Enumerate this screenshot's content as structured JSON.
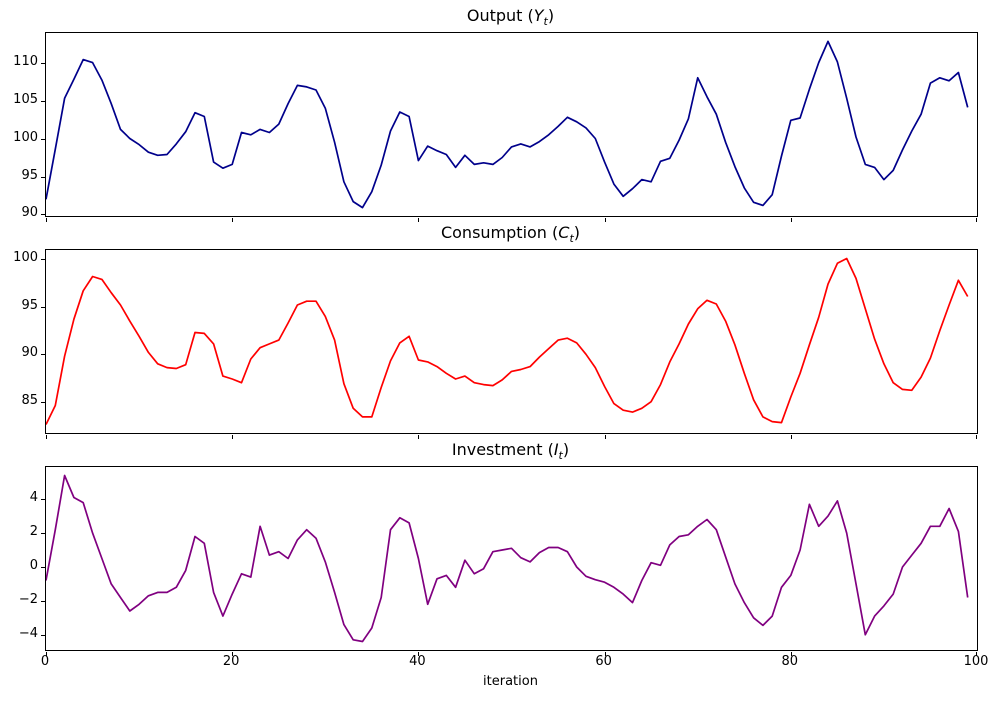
{
  "figure": {
    "xlabel": "iteration"
  },
  "chart_data": [
    {
      "type": "line",
      "title_prefix": "Output (",
      "title_symbol": "Y",
      "title_sub": "t",
      "title_suffix": ")",
      "color": "#00008b",
      "x_start": 0,
      "x_step": 1,
      "xlim": [
        0,
        100
      ],
      "ylim": [
        89.8,
        113.9
      ],
      "xticks": [
        0,
        20,
        40,
        60,
        80,
        100
      ],
      "yticks": [
        90,
        95,
        100,
        105,
        110
      ],
      "show_x_tick_labels": false,
      "grid": false,
      "legend": "none",
      "values": [
        92.0,
        98.6,
        105.3,
        107.8,
        110.4,
        110.0,
        107.7,
        104.6,
        101.2,
        100.0,
        99.2,
        98.2,
        97.8,
        97.9,
        99.3,
        100.9,
        103.4,
        102.9,
        96.9,
        96.1,
        96.6,
        100.8,
        100.5,
        101.2,
        100.8,
        101.9,
        104.6,
        107.0,
        106.8,
        106.4,
        104.0,
        99.5,
        94.3,
        91.7,
        90.9,
        93.0,
        96.5,
        101.0,
        103.5,
        102.9,
        97.1,
        99.0,
        98.4,
        97.9,
        96.2,
        97.8,
        96.6,
        96.8,
        96.6,
        97.5,
        98.9,
        99.3,
        98.9,
        99.6,
        100.5,
        101.6,
        102.8,
        102.2,
        101.4,
        100.0,
        96.9,
        94.0,
        92.4,
        93.4,
        94.6,
        94.3,
        97.0,
        97.4,
        99.8,
        102.6,
        108.0,
        105.5,
        103.2,
        99.5,
        96.3,
        93.5,
        91.6,
        91.2,
        92.6,
        97.7,
        102.4,
        102.7,
        106.5,
        110.0,
        112.8,
        110.1,
        105.3,
        100.2,
        96.6,
        96.2,
        94.6,
        95.8,
        98.5,
        101.0,
        103.2,
        107.3,
        108.0,
        107.6,
        108.7,
        104.1
      ]
    },
    {
      "type": "line",
      "title_prefix": "Consumption (",
      "title_symbol": "C",
      "title_sub": "t",
      "title_suffix": ")",
      "color": "#ff0000",
      "x_start": 0,
      "x_step": 1,
      "xlim": [
        0,
        100
      ],
      "ylim": [
        81.7,
        101.0
      ],
      "xticks": [
        0,
        20,
        40,
        60,
        80,
        100
      ],
      "yticks": [
        85,
        90,
        95,
        100
      ],
      "show_x_tick_labels": false,
      "grid": false,
      "legend": "none",
      "values": [
        82.6,
        84.6,
        89.8,
        93.7,
        96.7,
        98.2,
        97.9,
        96.5,
        95.2,
        93.5,
        91.9,
        90.2,
        89.0,
        88.6,
        88.5,
        88.9,
        92.3,
        92.2,
        91.1,
        87.7,
        87.4,
        87.0,
        89.5,
        90.7,
        91.1,
        91.5,
        93.3,
        95.2,
        95.6,
        95.6,
        94.0,
        91.5,
        86.9,
        84.3,
        83.4,
        83.4,
        86.5,
        89.3,
        91.2,
        91.9,
        89.4,
        89.2,
        88.7,
        88.0,
        87.4,
        87.7,
        87.0,
        86.8,
        86.7,
        87.3,
        88.2,
        88.4,
        88.7,
        89.7,
        90.6,
        91.5,
        91.7,
        91.2,
        90.0,
        88.6,
        86.6,
        84.8,
        84.1,
        83.9,
        84.3,
        85.0,
        86.8,
        89.2,
        91.1,
        93.2,
        94.8,
        95.7,
        95.3,
        93.5,
        91.0,
        88.0,
        85.2,
        83.4,
        82.9,
        82.8,
        85.5,
        88.0,
        91.0,
        93.9,
        97.4,
        99.6,
        100.1,
        98.0,
        94.8,
        91.6,
        89.0,
        87.0,
        86.3,
        86.2,
        87.6,
        89.6,
        92.5,
        95.2,
        97.8,
        96.1
      ]
    },
    {
      "type": "line",
      "title_prefix": "Investment (",
      "title_symbol": "I",
      "title_sub": "t",
      "title_suffix": ")",
      "color": "#800080",
      "x_start": 0,
      "x_step": 1,
      "xlim": [
        0,
        100
      ],
      "ylim": [
        -4.9,
        5.9
      ],
      "xticks": [
        0,
        20,
        40,
        60,
        80,
        100
      ],
      "yticks": [
        -4,
        -2,
        0,
        2,
        4
      ],
      "show_x_tick_labels": true,
      "grid": false,
      "legend": "none",
      "values": [
        -0.8,
        2.2,
        5.4,
        4.1,
        3.8,
        2.0,
        0.5,
        -1.0,
        -1.8,
        -2.6,
        -2.2,
        -1.7,
        -1.5,
        -1.5,
        -1.2,
        -0.2,
        1.8,
        1.4,
        -1.5,
        -2.9,
        -1.6,
        -0.4,
        -0.6,
        2.4,
        0.7,
        0.9,
        0.5,
        1.6,
        2.2,
        1.7,
        0.3,
        -1.5,
        -3.4,
        -4.3,
        -4.4,
        -3.6,
        -1.8,
        2.2,
        2.9,
        2.6,
        0.5,
        -2.2,
        -0.7,
        -0.5,
        -1.2,
        0.4,
        -0.4,
        -0.1,
        0.9,
        1.0,
        1.1,
        0.55,
        0.3,
        0.85,
        1.15,
        1.15,
        0.9,
        0.0,
        -0.55,
        -0.75,
        -0.9,
        -1.2,
        -1.6,
        -2.1,
        -0.8,
        0.25,
        0.1,
        1.3,
        1.8,
        1.9,
        2.4,
        2.8,
        2.2,
        0.6,
        -1.0,
        -2.1,
        -3.0,
        -3.45,
        -2.9,
        -1.2,
        -0.5,
        1.0,
        3.7,
        2.4,
        3.0,
        3.9,
        2.0,
        -1.0,
        -4.0,
        -2.9,
        -2.3,
        -1.6,
        0.0,
        0.7,
        1.4,
        2.4,
        2.4,
        3.45,
        2.1,
        -1.8
      ]
    }
  ]
}
